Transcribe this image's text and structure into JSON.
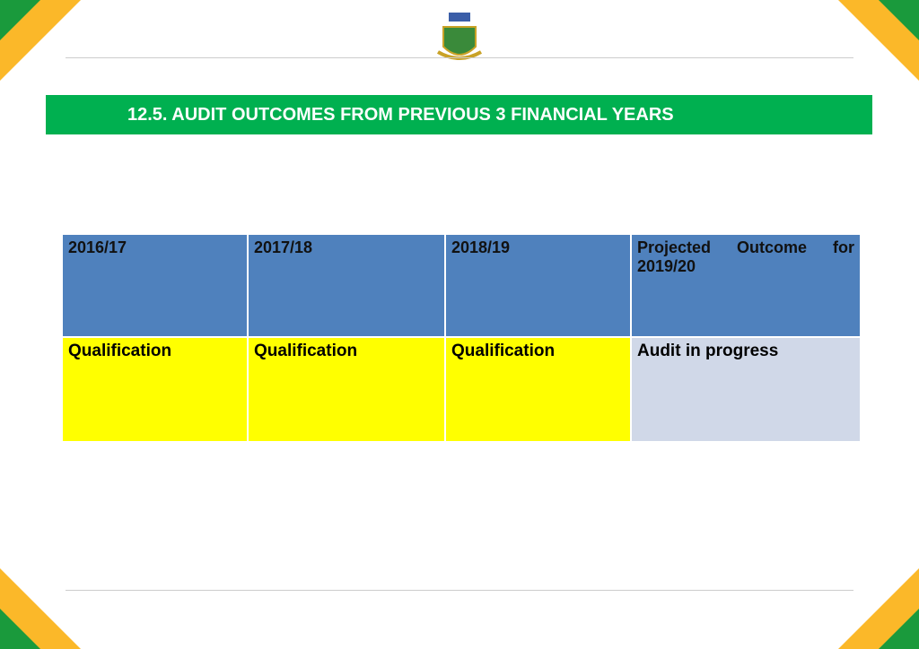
{
  "header": {
    "title": "12.5. AUDIT OUTCOMES FROM PREVIOUS 3 FINANCIAL YEARS"
  },
  "table": {
    "header": [
      "2016/17",
      "2017/18",
      "2018/19",
      "Projected Outcome for 2019/20"
    ],
    "rows": [
      [
        "Qualification",
        "Qualification",
        "Qualification",
        "Audit in progress"
      ]
    ]
  }
}
